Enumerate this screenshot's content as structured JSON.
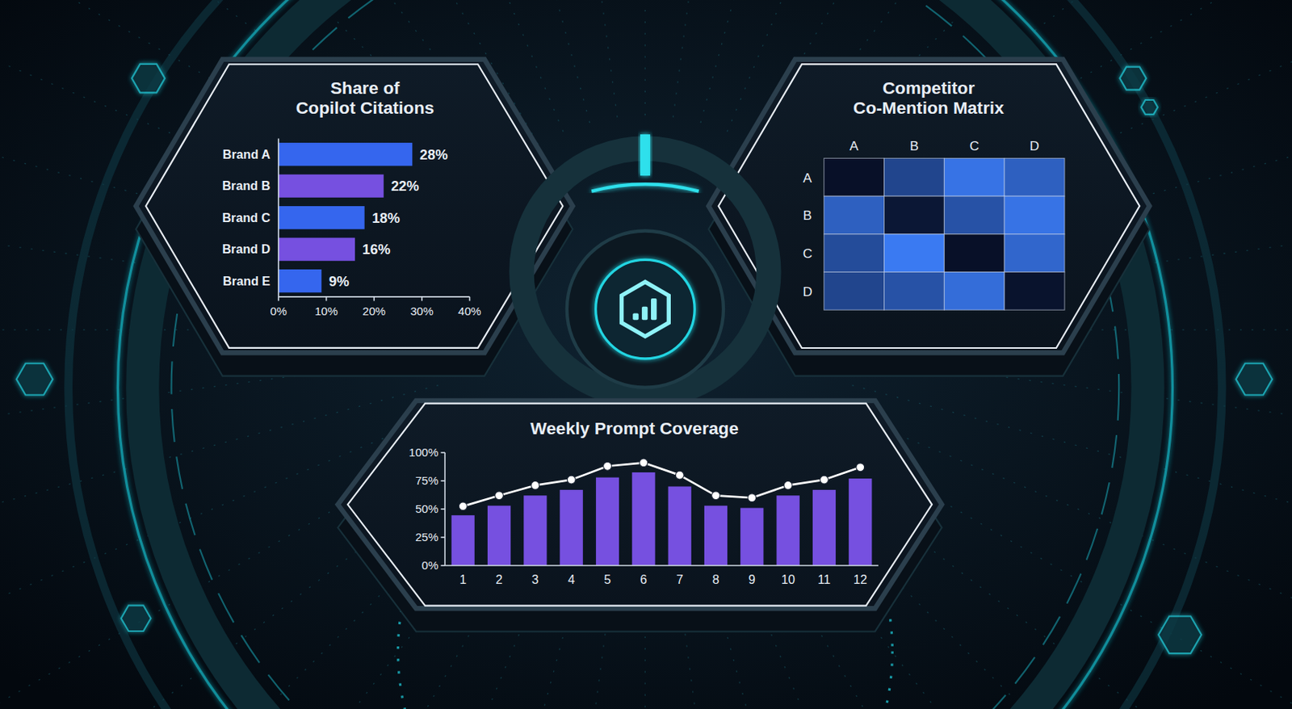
{
  "chart_data": [
    {
      "type": "bar",
      "title": "Share of Copilot Citations",
      "orientation": "horizontal",
      "categories": [
        "Brand A",
        "Brand B",
        "Brand C",
        "Brand D",
        "Brand E"
      ],
      "values": [
        28,
        22,
        18,
        16,
        9
      ],
      "value_labels": [
        "28%",
        "22%",
        "18%",
        "16%",
        "9%"
      ],
      "colors": [
        "#3566ee",
        "#7650e0",
        "#3566ee",
        "#7650e0",
        "#3566ee"
      ],
      "xlim": [
        0,
        40
      ],
      "xticks": [
        {
          "value": 0,
          "label": "0%"
        },
        {
          "value": 10,
          "label": "10%"
        },
        {
          "value": 20,
          "label": "20%"
        },
        {
          "value": 30,
          "label": "30%"
        },
        {
          "value": 40,
          "label": "40%"
        }
      ],
      "data_labels": true
    },
    {
      "type": "heatmap",
      "title": "Competitor Co-Mention Matrix",
      "x": [
        "A",
        "B",
        "C",
        "D"
      ],
      "y": [
        "A",
        "B",
        "C",
        "D"
      ],
      "cells": [
        [
          10,
          50,
          85,
          70
        ],
        [
          70,
          15,
          60,
          85
        ],
        [
          55,
          90,
          10,
          75
        ],
        [
          50,
          60,
          80,
          12
        ]
      ]
    },
    {
      "type": "bar",
      "title": "Weekly Prompt Coverage",
      "categories": [
        "1",
        "2",
        "3",
        "4",
        "5",
        "6",
        "7",
        "8",
        "9",
        "10",
        "11",
        "12"
      ],
      "series": [
        {
          "type": "bar",
          "color": "#7650e0",
          "values": [
            44.5,
            53,
            62,
            67,
            78,
            82.5,
            70,
            53,
            51,
            62,
            67,
            77
          ]
        },
        {
          "type": "line",
          "color": "#ffffff",
          "marker": "circle",
          "values": [
            52.5,
            62,
            71,
            76,
            88,
            91,
            80,
            62,
            60,
            71,
            76,
            87
          ]
        }
      ],
      "ylim": [
        0,
        100
      ],
      "yticks": [
        {
          "value": 0,
          "label": "0%"
        },
        {
          "value": 25,
          "label": "25%"
        },
        {
          "value": 50,
          "label": "50%"
        },
        {
          "value": 75,
          "label": "75%"
        },
        {
          "value": 100,
          "label": "100%"
        }
      ]
    }
  ]
}
